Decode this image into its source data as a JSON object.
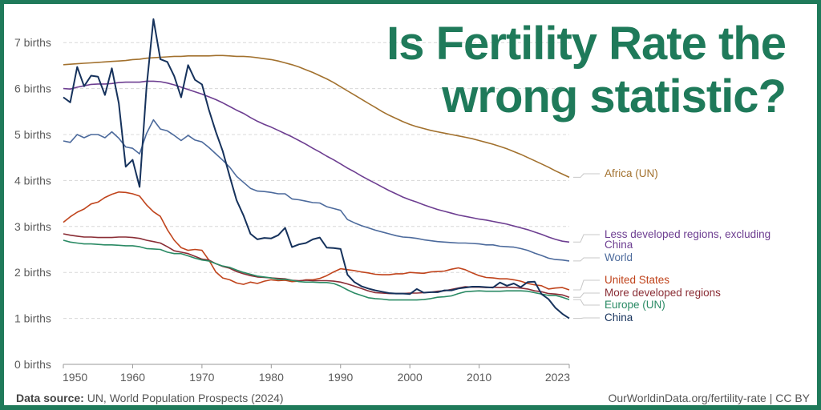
{
  "headline": {
    "line1": "Is Fertility Rate the",
    "line2": "wrong statistic?"
  },
  "footer": {
    "source_label": "Data source:",
    "source_text": "UN, World Population Prospects (2024)",
    "credit": "OurWorldinData.org/fertility-rate | CC BY"
  },
  "colors": {
    "frame": "#1f7a5a",
    "headline": "#1f7a5a"
  },
  "chart_data": {
    "type": "line",
    "title": "",
    "xlabel": "",
    "ylabel": "",
    "x_range": [
      1950,
      2023
    ],
    "ylim": [
      0,
      7.5
    ],
    "grid": true,
    "legend": "right (inline labels)",
    "yticks": [
      {
        "value": 0,
        "label": "0 births"
      },
      {
        "value": 1,
        "label": "1 births"
      },
      {
        "value": 2,
        "label": "2 births"
      },
      {
        "value": 3,
        "label": "3 births"
      },
      {
        "value": 4,
        "label": "4 births"
      },
      {
        "value": 5,
        "label": "5 births"
      },
      {
        "value": 6,
        "label": "6 births"
      },
      {
        "value": 7,
        "label": "7 births"
      }
    ],
    "xticks": [
      {
        "value": 1950,
        "label": "1950"
      },
      {
        "value": 1960,
        "label": "1960"
      },
      {
        "value": 1970,
        "label": "1970"
      },
      {
        "value": 1980,
        "label": "1980"
      },
      {
        "value": 1990,
        "label": "1990"
      },
      {
        "value": 2000,
        "label": "2000"
      },
      {
        "value": 2010,
        "label": "2010"
      },
      {
        "value": 2023,
        "label": "2023"
      }
    ],
    "x": [
      1950,
      1951,
      1952,
      1953,
      1954,
      1955,
      1956,
      1957,
      1958,
      1959,
      1960,
      1961,
      1962,
      1963,
      1964,
      1965,
      1966,
      1967,
      1968,
      1969,
      1970,
      1971,
      1972,
      1973,
      1974,
      1975,
      1976,
      1977,
      1978,
      1979,
      1980,
      1981,
      1982,
      1983,
      1984,
      1985,
      1986,
      1987,
      1988,
      1989,
      1990,
      1991,
      1992,
      1993,
      1994,
      1995,
      1996,
      1997,
      1998,
      1999,
      2000,
      2001,
      2002,
      2003,
      2004,
      2005,
      2006,
      2007,
      2008,
      2009,
      2010,
      2011,
      2012,
      2013,
      2014,
      2015,
      2016,
      2017,
      2018,
      2019,
      2020,
      2021,
      2022,
      2023
    ],
    "series": [
      {
        "name": "Africa (UN)",
        "label": "Africa (UN)",
        "color": "#a2712e",
        "values": [
          6.52,
          6.53,
          6.54,
          6.55,
          6.56,
          6.57,
          6.58,
          6.59,
          6.6,
          6.61,
          6.63,
          6.64,
          6.66,
          6.67,
          6.68,
          6.69,
          6.7,
          6.7,
          6.71,
          6.71,
          6.71,
          6.71,
          6.72,
          6.72,
          6.71,
          6.7,
          6.7,
          6.69,
          6.67,
          6.65,
          6.63,
          6.6,
          6.56,
          6.52,
          6.47,
          6.41,
          6.35,
          6.28,
          6.21,
          6.13,
          6.04,
          5.95,
          5.86,
          5.77,
          5.68,
          5.59,
          5.5,
          5.42,
          5.35,
          5.28,
          5.22,
          5.17,
          5.13,
          5.09,
          5.06,
          5.03,
          5.0,
          4.97,
          4.94,
          4.91,
          4.87,
          4.83,
          4.79,
          4.74,
          4.69,
          4.63,
          4.57,
          4.5,
          4.43,
          4.36,
          4.29,
          4.21,
          4.14,
          4.07
        ]
      },
      {
        "name": "Less developed regions, excluding China",
        "label": "Less developed regions, excluding China",
        "color": "#6d3e91",
        "values": [
          6.0,
          5.99,
          6.03,
          6.06,
          6.09,
          6.1,
          6.1,
          6.11,
          6.13,
          6.14,
          6.14,
          6.14,
          6.16,
          6.16,
          6.15,
          6.12,
          6.08,
          6.03,
          5.98,
          5.93,
          5.88,
          5.82,
          5.76,
          5.69,
          5.61,
          5.53,
          5.46,
          5.37,
          5.29,
          5.22,
          5.16,
          5.09,
          5.02,
          4.95,
          4.87,
          4.79,
          4.7,
          4.62,
          4.53,
          4.45,
          4.36,
          4.27,
          4.19,
          4.1,
          4.02,
          3.94,
          3.86,
          3.78,
          3.71,
          3.64,
          3.58,
          3.53,
          3.47,
          3.42,
          3.37,
          3.33,
          3.29,
          3.25,
          3.22,
          3.19,
          3.16,
          3.14,
          3.11,
          3.08,
          3.05,
          3.01,
          2.97,
          2.93,
          2.88,
          2.83,
          2.77,
          2.72,
          2.68,
          2.66
        ]
      },
      {
        "name": "World",
        "label": "World",
        "color": "#4c6a9c",
        "values": [
          4.86,
          4.83,
          5.0,
          4.93,
          5.0,
          5.0,
          4.93,
          5.06,
          4.92,
          4.73,
          4.7,
          4.58,
          5.02,
          5.32,
          5.12,
          5.08,
          4.98,
          4.87,
          4.98,
          4.88,
          4.84,
          4.72,
          4.58,
          4.44,
          4.29,
          4.09,
          3.96,
          3.83,
          3.77,
          3.76,
          3.74,
          3.71,
          3.71,
          3.6,
          3.58,
          3.55,
          3.52,
          3.51,
          3.43,
          3.39,
          3.35,
          3.15,
          3.08,
          3.02,
          2.97,
          2.92,
          2.88,
          2.84,
          2.8,
          2.77,
          2.76,
          2.74,
          2.71,
          2.69,
          2.67,
          2.66,
          2.65,
          2.64,
          2.64,
          2.63,
          2.62,
          2.6,
          2.6,
          2.57,
          2.56,
          2.55,
          2.52,
          2.48,
          2.42,
          2.37,
          2.31,
          2.28,
          2.27,
          2.25
        ]
      },
      {
        "name": "China",
        "label": "China",
        "color": "#16325c",
        "values": [
          5.81,
          5.7,
          6.47,
          6.05,
          6.28,
          6.26,
          5.86,
          6.44,
          5.68,
          4.3,
          4.45,
          3.86,
          6.02,
          7.51,
          6.64,
          6.58,
          6.27,
          5.81,
          6.51,
          6.19,
          6.09,
          5.54,
          5.06,
          4.64,
          4.09,
          3.57,
          3.24,
          2.84,
          2.72,
          2.75,
          2.74,
          2.81,
          2.97,
          2.55,
          2.61,
          2.64,
          2.72,
          2.76,
          2.54,
          2.53,
          2.51,
          1.95,
          1.79,
          1.7,
          1.65,
          1.61,
          1.58,
          1.55,
          1.54,
          1.54,
          1.53,
          1.64,
          1.56,
          1.57,
          1.57,
          1.61,
          1.61,
          1.65,
          1.67,
          1.69,
          1.69,
          1.68,
          1.67,
          1.78,
          1.71,
          1.76,
          1.68,
          1.79,
          1.8,
          1.53,
          1.42,
          1.23,
          1.1,
          1.0
        ]
      },
      {
        "name": "United States",
        "label": "United States",
        "color": "#c0441c",
        "values": [
          3.09,
          3.21,
          3.31,
          3.38,
          3.49,
          3.53,
          3.63,
          3.7,
          3.75,
          3.74,
          3.71,
          3.66,
          3.47,
          3.32,
          3.22,
          2.93,
          2.7,
          2.54,
          2.48,
          2.5,
          2.48,
          2.27,
          2.01,
          1.88,
          1.84,
          1.77,
          1.74,
          1.79,
          1.76,
          1.81,
          1.84,
          1.82,
          1.83,
          1.8,
          1.81,
          1.84,
          1.84,
          1.87,
          1.93,
          2.01,
          2.08,
          2.06,
          2.04,
          2.01,
          1.99,
          1.96,
          1.95,
          1.95,
          1.97,
          1.97,
          2.0,
          1.99,
          1.98,
          2.01,
          2.02,
          2.03,
          2.07,
          2.1,
          2.06,
          1.99,
          1.93,
          1.89,
          1.88,
          1.86,
          1.86,
          1.84,
          1.81,
          1.76,
          1.73,
          1.71,
          1.64,
          1.66,
          1.67,
          1.62
        ]
      },
      {
        "name": "More developed regions",
        "label": "More developed regions",
        "color": "#8a2d35",
        "values": [
          2.84,
          2.81,
          2.79,
          2.77,
          2.77,
          2.76,
          2.76,
          2.76,
          2.77,
          2.77,
          2.76,
          2.74,
          2.7,
          2.67,
          2.64,
          2.56,
          2.47,
          2.44,
          2.41,
          2.35,
          2.29,
          2.27,
          2.19,
          2.13,
          2.09,
          2.02,
          1.97,
          1.93,
          1.9,
          1.89,
          1.88,
          1.87,
          1.86,
          1.83,
          1.82,
          1.83,
          1.82,
          1.82,
          1.82,
          1.81,
          1.79,
          1.75,
          1.7,
          1.65,
          1.6,
          1.56,
          1.55,
          1.54,
          1.54,
          1.54,
          1.55,
          1.55,
          1.56,
          1.57,
          1.59,
          1.6,
          1.63,
          1.66,
          1.69,
          1.68,
          1.68,
          1.67,
          1.68,
          1.67,
          1.68,
          1.67,
          1.66,
          1.64,
          1.6,
          1.58,
          1.54,
          1.53,
          1.51,
          1.46
        ]
      },
      {
        "name": "Europe (UN)",
        "label": "Europe (UN)",
        "color": "#2a8a64",
        "values": [
          2.7,
          2.66,
          2.64,
          2.62,
          2.62,
          2.61,
          2.6,
          2.6,
          2.59,
          2.58,
          2.58,
          2.56,
          2.52,
          2.51,
          2.5,
          2.44,
          2.41,
          2.41,
          2.36,
          2.31,
          2.27,
          2.25,
          2.19,
          2.14,
          2.11,
          2.05,
          2.0,
          1.96,
          1.92,
          1.9,
          1.88,
          1.85,
          1.85,
          1.83,
          1.8,
          1.79,
          1.79,
          1.78,
          1.78,
          1.76,
          1.7,
          1.62,
          1.55,
          1.5,
          1.45,
          1.43,
          1.42,
          1.4,
          1.4,
          1.4,
          1.4,
          1.4,
          1.41,
          1.43,
          1.46,
          1.47,
          1.49,
          1.54,
          1.58,
          1.59,
          1.6,
          1.59,
          1.59,
          1.59,
          1.6,
          1.6,
          1.6,
          1.59,
          1.56,
          1.53,
          1.5,
          1.5,
          1.46,
          1.41
        ]
      }
    ]
  }
}
